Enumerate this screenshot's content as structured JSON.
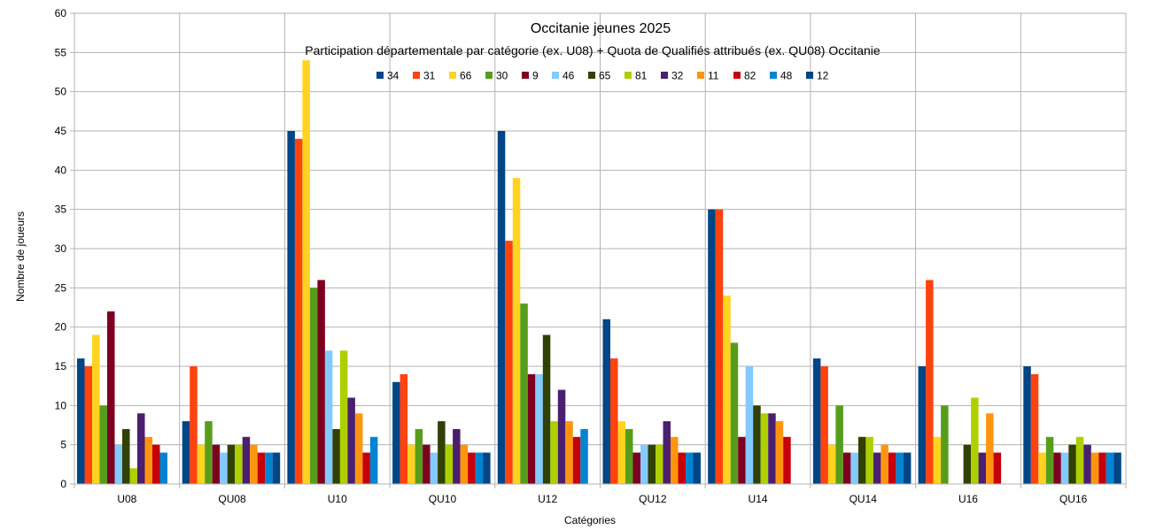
{
  "chart_data": {
    "type": "bar",
    "title": "Occitanie jeunes 2025",
    "subtitle": "Participation départementale par catégorie (ex. U08) + Quota de Qualifiés attribués (ex. QU08) Occitanie",
    "xlabel": "Catégories",
    "ylabel": "Nombre de joueurs",
    "ylim": [
      0,
      60
    ],
    "yticks": [
      0,
      5,
      10,
      15,
      20,
      25,
      30,
      35,
      40,
      45,
      50,
      55,
      60
    ],
    "grid": true,
    "legend_position": "top-center",
    "categories": [
      "U08",
      "QU08",
      "U10",
      "QU10",
      "U12",
      "QU12",
      "U14",
      "QU14",
      "U16",
      "QU16"
    ],
    "series": [
      {
        "name": "34",
        "color": "#004586",
        "values": [
          16,
          8,
          45,
          13,
          45,
          21,
          35,
          16,
          15,
          15
        ]
      },
      {
        "name": "31",
        "color": "#ff420e",
        "values": [
          15,
          15,
          44,
          14,
          31,
          16,
          35,
          15,
          26,
          14
        ]
      },
      {
        "name": "66",
        "color": "#ffd320",
        "values": [
          19,
          5,
          54,
          5,
          39,
          8,
          24,
          5,
          6,
          4
        ]
      },
      {
        "name": "30",
        "color": "#579d1c",
        "values": [
          10,
          8,
          25,
          7,
          23,
          7,
          18,
          10,
          10,
          6
        ]
      },
      {
        "name": "9",
        "color": "#7e0021",
        "values": [
          22,
          5,
          26,
          5,
          14,
          4,
          6,
          4,
          0,
          4
        ]
      },
      {
        "name": "46",
        "color": "#83caff",
        "values": [
          5,
          4,
          17,
          4,
          14,
          5,
          15,
          4,
          0,
          4
        ]
      },
      {
        "name": "65",
        "color": "#314004",
        "values": [
          7,
          5,
          7,
          8,
          19,
          5,
          10,
          6,
          5,
          5
        ]
      },
      {
        "name": "81",
        "color": "#aecf00",
        "values": [
          2,
          5,
          17,
          5,
          8,
          5,
          9,
          6,
          11,
          6
        ]
      },
      {
        "name": "32",
        "color": "#4b1f6f",
        "values": [
          9,
          6,
          11,
          7,
          12,
          8,
          9,
          4,
          4,
          5
        ]
      },
      {
        "name": "11",
        "color": "#ff950e",
        "values": [
          6,
          5,
          9,
          5,
          8,
          6,
          8,
          5,
          9,
          4
        ]
      },
      {
        "name": "82",
        "color": "#c5000b",
        "values": [
          5,
          4,
          4,
          4,
          6,
          4,
          6,
          4,
          4,
          4
        ]
      },
      {
        "name": "48",
        "color": "#0084d1",
        "values": [
          4,
          4,
          6,
          4,
          7,
          4,
          0,
          4,
          0,
          4
        ]
      },
      {
        "name": "12",
        "color": "#004586",
        "values": [
          0,
          4,
          0,
          4,
          0,
          4,
          0,
          4,
          0,
          4
        ]
      }
    ]
  }
}
